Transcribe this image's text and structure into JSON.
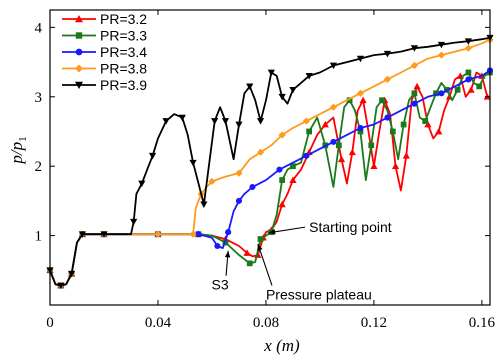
{
  "chart_data": {
    "type": "line",
    "title": "",
    "xlabel": "x (m)",
    "ylabel": "p/p1",
    "ylabel_main": "p/p",
    "ylabel_sub": "1",
    "xlim": [
      0,
      0.163
    ],
    "ylim": [
      0,
      4.25
    ],
    "xticks": [
      {
        "v": 0,
        "label": "0"
      },
      {
        "v": 0.04,
        "label": "0.04"
      },
      {
        "v": 0.08,
        "label": "0.08"
      },
      {
        "v": 0.12,
        "label": "0.12"
      },
      {
        "v": 0.16,
        "label": "0.16"
      }
    ],
    "yticks": [
      {
        "v": 1,
        "label": "1"
      },
      {
        "v": 2,
        "label": "2"
      },
      {
        "v": 3,
        "label": "3"
      },
      {
        "v": 4,
        "label": "4"
      }
    ],
    "grid": false,
    "legend_position": "top-left",
    "series": [
      {
        "name": "PR=3.2",
        "color": "#ff0000",
        "marker": "triangle-up",
        "x": [
          0,
          0.002,
          0.004,
          0.006,
          0.008,
          0.01,
          0.012,
          0.014,
          0.02,
          0.03,
          0.04,
          0.05,
          0.055,
          0.06,
          0.065,
          0.07,
          0.073,
          0.075,
          0.077,
          0.078,
          0.079,
          0.08,
          0.082,
          0.084,
          0.086,
          0.088,
          0.09,
          0.093,
          0.096,
          0.099,
          0.102,
          0.105,
          0.108,
          0.11,
          0.112,
          0.114,
          0.116,
          0.118,
          0.12,
          0.122,
          0.124,
          0.126,
          0.128,
          0.13,
          0.132,
          0.134,
          0.136,
          0.138,
          0.14,
          0.142,
          0.144,
          0.146,
          0.148,
          0.15,
          0.152,
          0.154,
          0.156,
          0.158,
          0.16,
          0.162
        ],
        "y": [
          0.5,
          0.3,
          0.28,
          0.3,
          0.45,
          0.9,
          1.02,
          1.02,
          1.02,
          1.02,
          1.02,
          1.02,
          1.02,
          1.0,
          0.95,
          0.85,
          0.75,
          0.7,
          0.72,
          0.85,
          0.97,
          1.05,
          1.08,
          1.2,
          1.45,
          1.6,
          1.8,
          1.95,
          2.2,
          2.45,
          2.6,
          2.7,
          2.1,
          1.75,
          2.2,
          2.8,
          2.95,
          2.5,
          2.0,
          2.5,
          2.95,
          2.75,
          2.0,
          1.65,
          2.15,
          2.95,
          3.15,
          3.0,
          2.6,
          2.4,
          2.5,
          2.8,
          3.0,
          3.25,
          3.3,
          3.0,
          3.1,
          3.35,
          3.3,
          3.0
        ]
      },
      {
        "name": "PR=3.3",
        "color": "#1a7a1a",
        "marker": "square",
        "x": [
          0,
          0.002,
          0.004,
          0.006,
          0.008,
          0.01,
          0.012,
          0.014,
          0.02,
          0.03,
          0.04,
          0.05,
          0.055,
          0.06,
          0.065,
          0.07,
          0.074,
          0.076,
          0.078,
          0.08,
          0.082,
          0.084,
          0.086,
          0.088,
          0.09,
          0.093,
          0.096,
          0.099,
          0.102,
          0.105,
          0.107,
          0.109,
          0.111,
          0.113,
          0.115,
          0.117,
          0.119,
          0.121,
          0.123,
          0.125,
          0.127,
          0.129,
          0.131,
          0.133,
          0.135,
          0.137,
          0.139,
          0.141,
          0.143,
          0.145,
          0.147,
          0.149,
          0.151,
          0.153,
          0.155,
          0.157,
          0.159,
          0.161,
          0.163
        ],
        "y": [
          0.5,
          0.3,
          0.28,
          0.3,
          0.45,
          0.9,
          1.02,
          1.02,
          1.02,
          1.02,
          1.02,
          1.02,
          1.02,
          1.0,
          0.9,
          0.72,
          0.6,
          0.62,
          0.95,
          1.0,
          1.05,
          1.3,
          1.8,
          1.95,
          2.0,
          2.05,
          2.5,
          2.7,
          2.3,
          1.7,
          2.3,
          2.85,
          2.95,
          2.8,
          2.5,
          1.8,
          2.3,
          2.85,
          2.95,
          2.8,
          2.5,
          2.1,
          2.6,
          2.95,
          3.05,
          2.7,
          2.65,
          2.85,
          3.05,
          3.2,
          3.1,
          2.95,
          3.1,
          3.3,
          3.35,
          3.2,
          3.15,
          3.3,
          3.35
        ]
      },
      {
        "name": "PR=3.4",
        "color": "#1a1aff",
        "marker": "circle",
        "x": [
          0,
          0.002,
          0.004,
          0.006,
          0.008,
          0.01,
          0.012,
          0.014,
          0.02,
          0.03,
          0.04,
          0.05,
          0.055,
          0.06,
          0.062,
          0.064,
          0.066,
          0.068,
          0.07,
          0.072,
          0.075,
          0.08,
          0.085,
          0.09,
          0.095,
          0.1,
          0.105,
          0.11,
          0.115,
          0.12,
          0.125,
          0.13,
          0.135,
          0.14,
          0.145,
          0.15,
          0.155,
          0.16,
          0.163
        ],
        "y": [
          0.5,
          0.3,
          0.28,
          0.3,
          0.45,
          0.9,
          1.02,
          1.02,
          1.02,
          1.02,
          1.02,
          1.02,
          1.02,
          0.97,
          0.85,
          0.82,
          1.05,
          1.35,
          1.5,
          1.6,
          1.7,
          1.8,
          1.95,
          2.05,
          2.15,
          2.25,
          2.35,
          2.45,
          2.55,
          2.6,
          2.7,
          2.8,
          2.9,
          3.0,
          3.05,
          3.15,
          3.25,
          3.3,
          3.38
        ]
      },
      {
        "name": "PR=3.8",
        "color": "#ff9a1a",
        "marker": "diamond",
        "x": [
          0,
          0.002,
          0.004,
          0.006,
          0.008,
          0.01,
          0.012,
          0.014,
          0.02,
          0.03,
          0.04,
          0.05,
          0.053,
          0.054,
          0.056,
          0.058,
          0.06,
          0.065,
          0.07,
          0.074,
          0.078,
          0.082,
          0.086,
          0.09,
          0.095,
          0.1,
          0.105,
          0.11,
          0.115,
          0.12,
          0.125,
          0.13,
          0.135,
          0.14,
          0.145,
          0.15,
          0.155,
          0.16,
          0.163
        ],
        "y": [
          0.5,
          0.3,
          0.28,
          0.3,
          0.45,
          0.9,
          1.02,
          1.02,
          1.02,
          1.02,
          1.02,
          1.02,
          1.02,
          1.4,
          1.6,
          1.7,
          1.78,
          1.85,
          1.9,
          2.1,
          2.2,
          2.3,
          2.45,
          2.55,
          2.65,
          2.75,
          2.85,
          2.95,
          3.05,
          3.15,
          3.25,
          3.35,
          3.45,
          3.55,
          3.6,
          3.65,
          3.7,
          3.77,
          3.82
        ]
      },
      {
        "name": "PR=3.9",
        "color": "#000000",
        "marker": "triangle-down",
        "x": [
          0,
          0.002,
          0.004,
          0.006,
          0.008,
          0.01,
          0.012,
          0.014,
          0.02,
          0.03,
          0.031,
          0.032,
          0.034,
          0.036,
          0.038,
          0.04,
          0.043,
          0.046,
          0.049,
          0.051,
          0.053,
          0.055,
          0.057,
          0.059,
          0.061,
          0.063,
          0.065,
          0.068,
          0.07,
          0.072,
          0.074,
          0.076,
          0.078,
          0.08,
          0.082,
          0.084,
          0.086,
          0.088,
          0.09,
          0.093,
          0.096,
          0.1,
          0.105,
          0.11,
          0.115,
          0.12,
          0.125,
          0.13,
          0.135,
          0.14,
          0.145,
          0.15,
          0.155,
          0.16,
          0.163
        ],
        "y": [
          0.5,
          0.3,
          0.28,
          0.3,
          0.45,
          0.9,
          1.02,
          1.02,
          1.02,
          1.02,
          1.2,
          1.6,
          1.75,
          1.95,
          2.15,
          2.4,
          2.65,
          2.75,
          2.7,
          2.45,
          2.05,
          1.75,
          1.45,
          2.05,
          2.65,
          2.85,
          2.65,
          2.1,
          2.6,
          3.05,
          3.15,
          2.95,
          2.65,
          2.95,
          3.35,
          3.3,
          3.0,
          2.9,
          3.1,
          3.2,
          3.3,
          3.35,
          3.45,
          3.5,
          3.55,
          3.6,
          3.62,
          3.65,
          3.7,
          3.72,
          3.75,
          3.78,
          3.8,
          3.83,
          3.85
        ]
      }
    ],
    "annotations": [
      {
        "text": "Starting point",
        "x": 0.096,
        "y": 1.05,
        "point_x": 0.081,
        "point_y": 1.04
      },
      {
        "text": "S3",
        "x": 0.063,
        "y": 0.22,
        "point_x": 0.066,
        "point_y": 0.78
      },
      {
        "text": "Pressure plateau",
        "x": 0.08,
        "y": 0.08,
        "point_x": 0.077,
        "point_y": 0.88
      }
    ]
  }
}
